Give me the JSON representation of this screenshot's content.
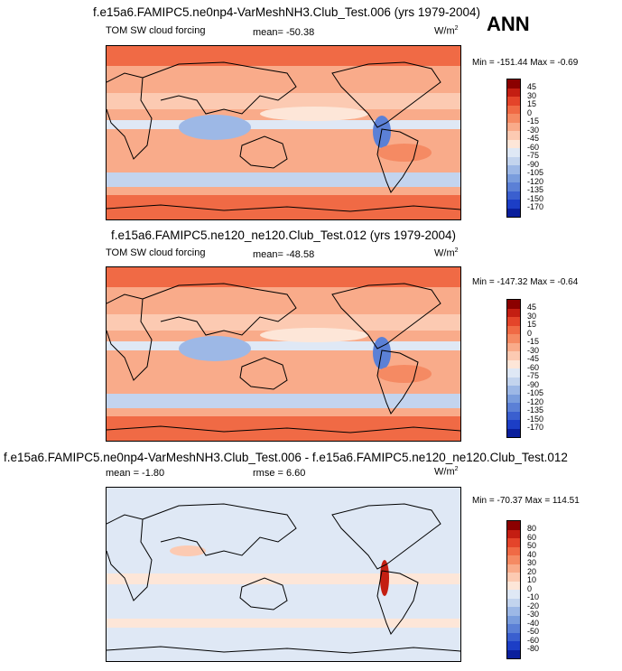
{
  "chart_data": [
    {
      "type": "heatmap",
      "title": "f.e15a6.FAMIPC5.ne0np4-VarMeshNH3.Club_Test.006 (yrs 1979-2004)",
      "variable": "TOM SW cloud forcing",
      "mean": "mean= -50.38",
      "units_base": "W/m",
      "units_exp": "2",
      "season": "ANN",
      "minmax": "Min = -151.44  Max =  -0.69",
      "min": -151.44,
      "max": -0.69,
      "colorbar": {
        "levels": [
          "45",
          "30",
          "15",
          "0",
          "-15",
          "-30",
          "-45",
          "-60",
          "-75",
          "-90",
          "-105",
          "-120",
          "-135",
          "-150",
          "-170"
        ],
        "colors": [
          "#8b0000",
          "#c41e12",
          "#e4442a",
          "#f06a45",
          "#f58a63",
          "#f9ab8a",
          "#fccab2",
          "#fde6d8",
          "#dfe8f5",
          "#c3d4ee",
          "#9db8e6",
          "#7a9ddd",
          "#5b80d6",
          "#3a5fcf",
          "#1c3ec6",
          "#0a1f9c"
        ]
      }
    },
    {
      "type": "heatmap",
      "title": "f.e15a6.FAMIPC5.ne120_ne120.Club_Test.012 (yrs 1979-2004)",
      "variable": "TOM SW cloud forcing",
      "mean": "mean= -48.58",
      "units_base": "W/m",
      "units_exp": "2",
      "minmax": "Min = -147.32  Max =  -0.64",
      "min": -147.32,
      "max": -0.64,
      "colorbar": {
        "levels": [
          "45",
          "30",
          "15",
          "0",
          "-15",
          "-30",
          "-45",
          "-60",
          "-75",
          "-90",
          "-105",
          "-120",
          "-135",
          "-150",
          "-170"
        ],
        "colors": [
          "#8b0000",
          "#c41e12",
          "#e4442a",
          "#f06a45",
          "#f58a63",
          "#f9ab8a",
          "#fccab2",
          "#fde6d8",
          "#dfe8f5",
          "#c3d4ee",
          "#9db8e6",
          "#7a9ddd",
          "#5b80d6",
          "#3a5fcf",
          "#1c3ec6",
          "#0a1f9c"
        ]
      }
    },
    {
      "type": "heatmap",
      "title": "f.e15a6.FAMIPC5.ne0np4-VarMeshNH3.Club_Test.006 - f.e15a6.FAMIPC5.ne120_ne120.Club_Test.012",
      "mean": "mean =  -1.80",
      "rmse": "rmse =   6.60",
      "units_base": "W/m",
      "units_exp": "2",
      "minmax": "Min = -70.37 Max = 114.51",
      "min": -70.37,
      "max": 114.51,
      "colorbar": {
        "levels": [
          "80",
          "60",
          "50",
          "40",
          "30",
          "20",
          "10",
          "0",
          "-10",
          "-20",
          "-30",
          "-40",
          "-50",
          "-60",
          "-80"
        ],
        "colors": [
          "#8b0000",
          "#c41e12",
          "#e4442a",
          "#f06a45",
          "#f58a63",
          "#f9ab8a",
          "#fccab2",
          "#fde6d8",
          "#dfe8f5",
          "#c3d4ee",
          "#9db8e6",
          "#7a9ddd",
          "#5b80d6",
          "#3a5fcf",
          "#1c3ec6",
          "#0a1f9c"
        ]
      }
    }
  ]
}
